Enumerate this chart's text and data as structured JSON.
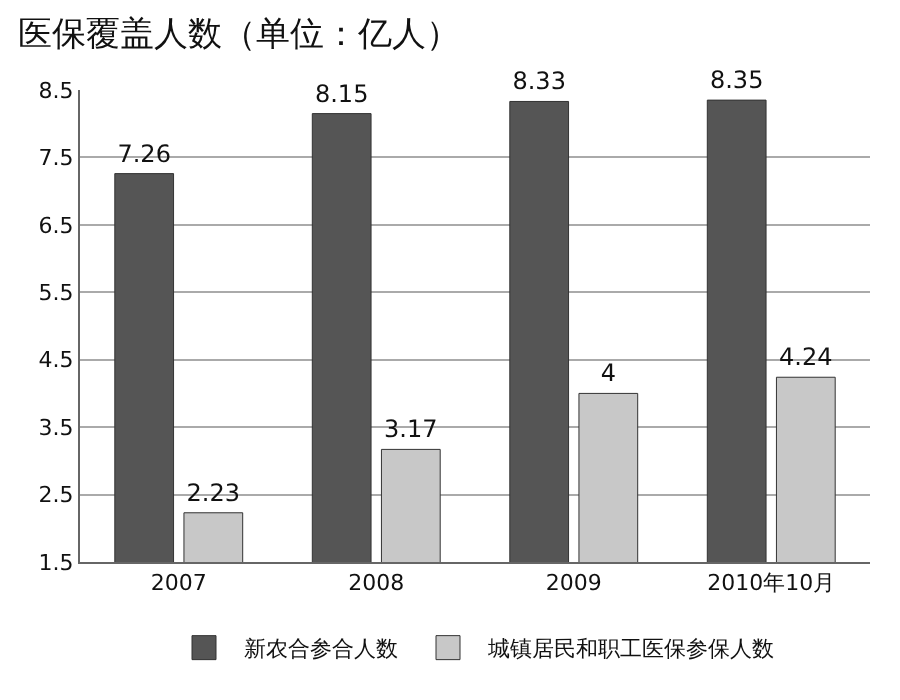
{
  "chart_data": {
    "type": "bar",
    "title": "医保覆盖人数（单位：亿人）",
    "categories": [
      "2007",
      "2008",
      "2009",
      "2010年10月"
    ],
    "series": [
      {
        "name": "新农合参合人数",
        "color": "#555555",
        "values": [
          7.26,
          8.15,
          8.33,
          8.35
        ]
      },
      {
        "name": "城镇居民和职工医保参保人数",
        "color": "#c8c8c8",
        "values": [
          2.23,
          3.17,
          4,
          4.24
        ]
      }
    ],
    "ylim": [
      1.5,
      8.5
    ],
    "yticks": [
      "1.5",
      "2.5",
      "3.5",
      "4.5",
      "5.5",
      "6.5",
      "7.5",
      "8.5"
    ],
    "grid": "y",
    "legend": "bottom",
    "data_labels": true
  }
}
